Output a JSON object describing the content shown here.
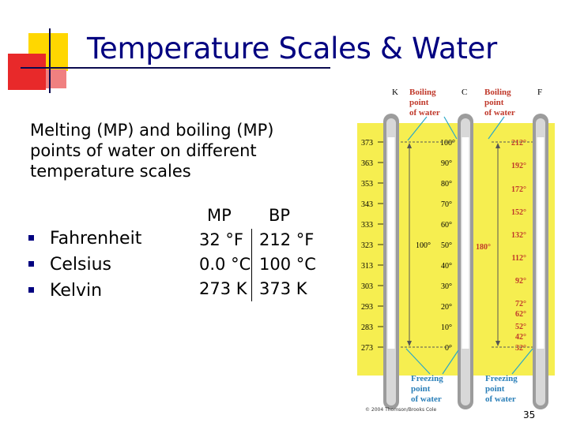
{
  "slide": {
    "title": "Temperature Scales & Water",
    "intro": "Melting (MP) and boiling (MP) points of water on different temperature scales",
    "bullets": [
      "Fahrenheit",
      "Celsius",
      "Kelvin"
    ],
    "table": {
      "headers": [
        "MP",
        "BP"
      ],
      "rows": [
        [
          "32 °F",
          "212 °F"
        ],
        [
          "0.0 °C",
          "100 °C"
        ],
        [
          "273 K",
          "373 K"
        ]
      ]
    },
    "page_number": "35",
    "colors": {
      "title": "#000080",
      "accent_yellow": "#ffd700",
      "accent_red": "#e8292a",
      "accent_pink": "#f08080"
    }
  },
  "figure": {
    "scale_labels": [
      "K",
      "C",
      "F"
    ],
    "boiling_label": [
      "Boiling",
      "point",
      "of water"
    ],
    "freezing_label": [
      "Freezing",
      "point",
      "of water"
    ],
    "kelvin_ticks": [
      "373",
      "363",
      "353",
      "343",
      "333",
      "323",
      "313",
      "303",
      "293",
      "283",
      "273"
    ],
    "celsius_ticks": [
      "100°",
      "90°",
      "80°",
      "70°",
      "60°",
      "50°",
      "40°",
      "30°",
      "20°",
      "10°",
      "0°"
    ],
    "fahrenheit_ticks": [
      "212°",
      "192°",
      "172°",
      "152°",
      "132°",
      "112°",
      "92°",
      "72°",
      "62°",
      "52°",
      "42°",
      "32°"
    ],
    "kc_range_label": "100°",
    "f_range_label": "180°",
    "credit": "© 2004 Thomson/Brooks Cole"
  }
}
